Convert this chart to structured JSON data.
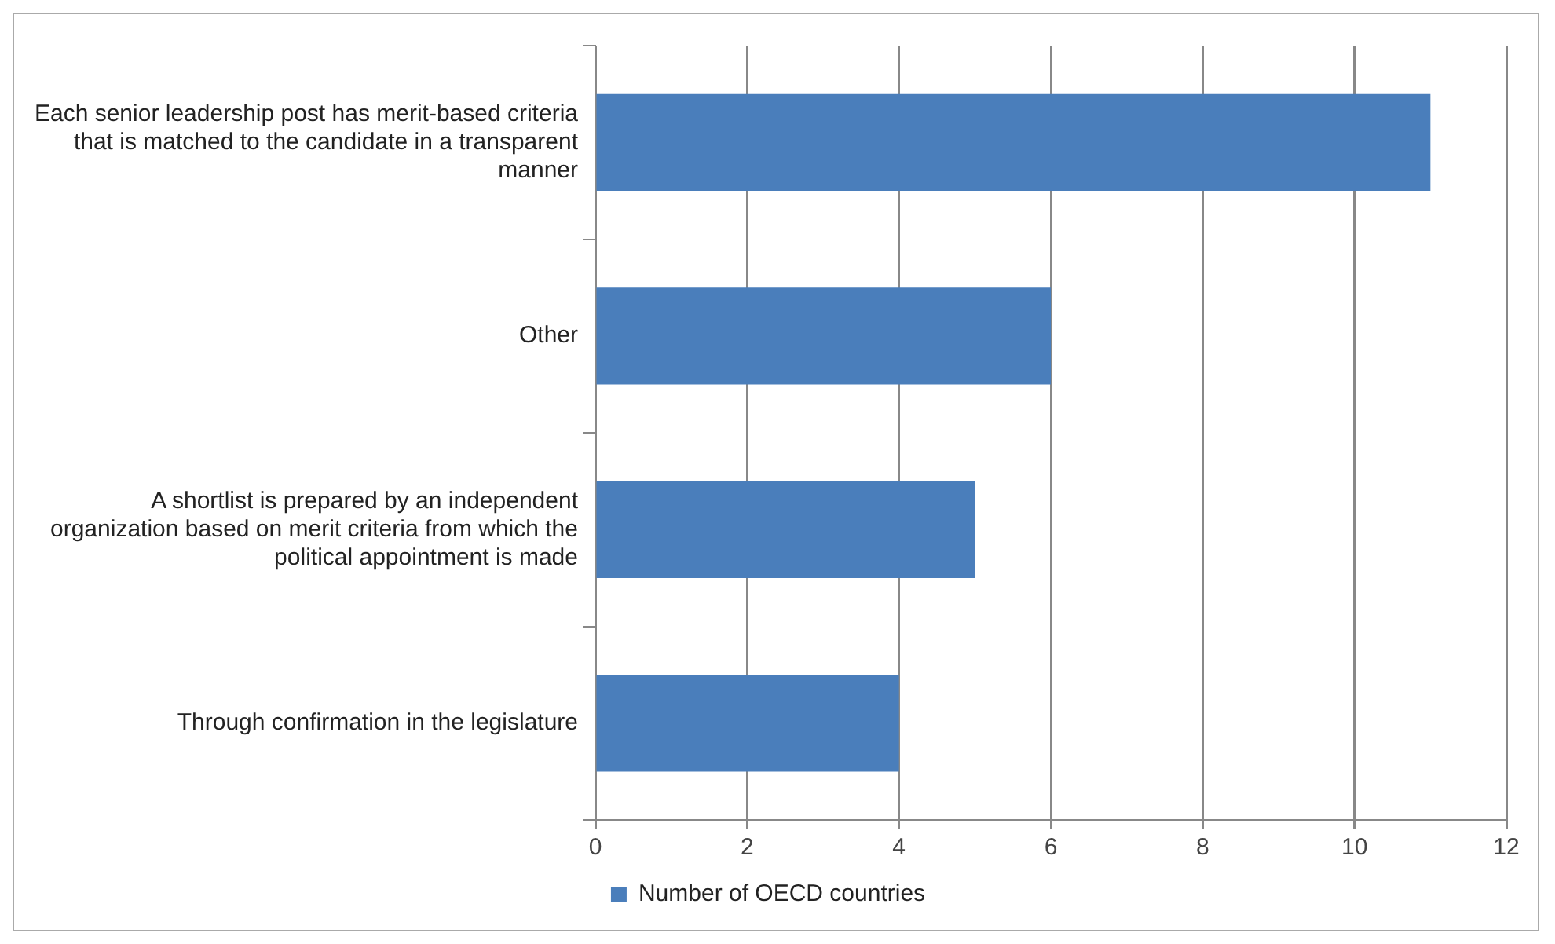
{
  "chart_data": {
    "type": "bar",
    "orientation": "horizontal",
    "categories": [
      "Each senior leadership post has merit-based criteria that is matched to the candidate in a transparent manner",
      "Other",
      "A shortlist is prepared by an independent organization based on merit criteria from which the political appointment is made",
      "Through confirmation in the legislature"
    ],
    "series": [
      {
        "name": "Number of OECD countries",
        "color": "#4a7ebb",
        "values": [
          11,
          6,
          5,
          4
        ]
      }
    ],
    "xlim": [
      0,
      12
    ],
    "xticks": [
      0,
      2,
      4,
      6,
      8,
      10,
      12
    ],
    "grid": "x",
    "legend": "bottom"
  }
}
